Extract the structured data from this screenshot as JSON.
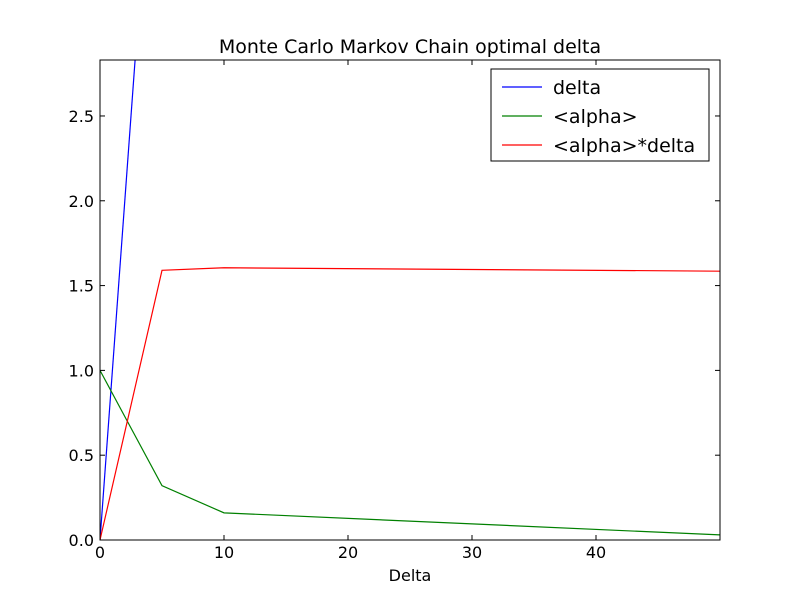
{
  "chart_data": {
    "type": "line",
    "title": "Monte Carlo Markov Chain optimal delta",
    "xlabel": "Delta",
    "ylabel": "",
    "xlim": [
      0,
      50
    ],
    "ylim": [
      0,
      2.83
    ],
    "x_ticks": [
      0,
      10,
      20,
      30,
      40
    ],
    "x_tick_labels": [
      "0",
      "10",
      "20",
      "30",
      "40"
    ],
    "y_ticks": [
      0.0,
      0.5,
      1.0,
      1.5,
      2.0,
      2.5
    ],
    "y_tick_labels": [
      "0.0",
      "0.5",
      "1.0",
      "1.5",
      "2.0",
      "2.5"
    ],
    "grid": false,
    "legend_position": "top-right",
    "series": [
      {
        "name": "delta",
        "color": "#0000ff",
        "x": [
          0,
          5
        ],
        "y": [
          0,
          5
        ]
      },
      {
        "name": "<alpha>",
        "color": "#008000",
        "x": [
          0,
          5,
          10,
          50
        ],
        "y": [
          1.0,
          0.32,
          0.16,
          0.03
        ]
      },
      {
        "name": "<alpha>*delta",
        "color": "#ff0000",
        "x": [
          0,
          5,
          10,
          50
        ],
        "y": [
          0,
          1.59,
          1.605,
          1.585
        ]
      }
    ]
  }
}
